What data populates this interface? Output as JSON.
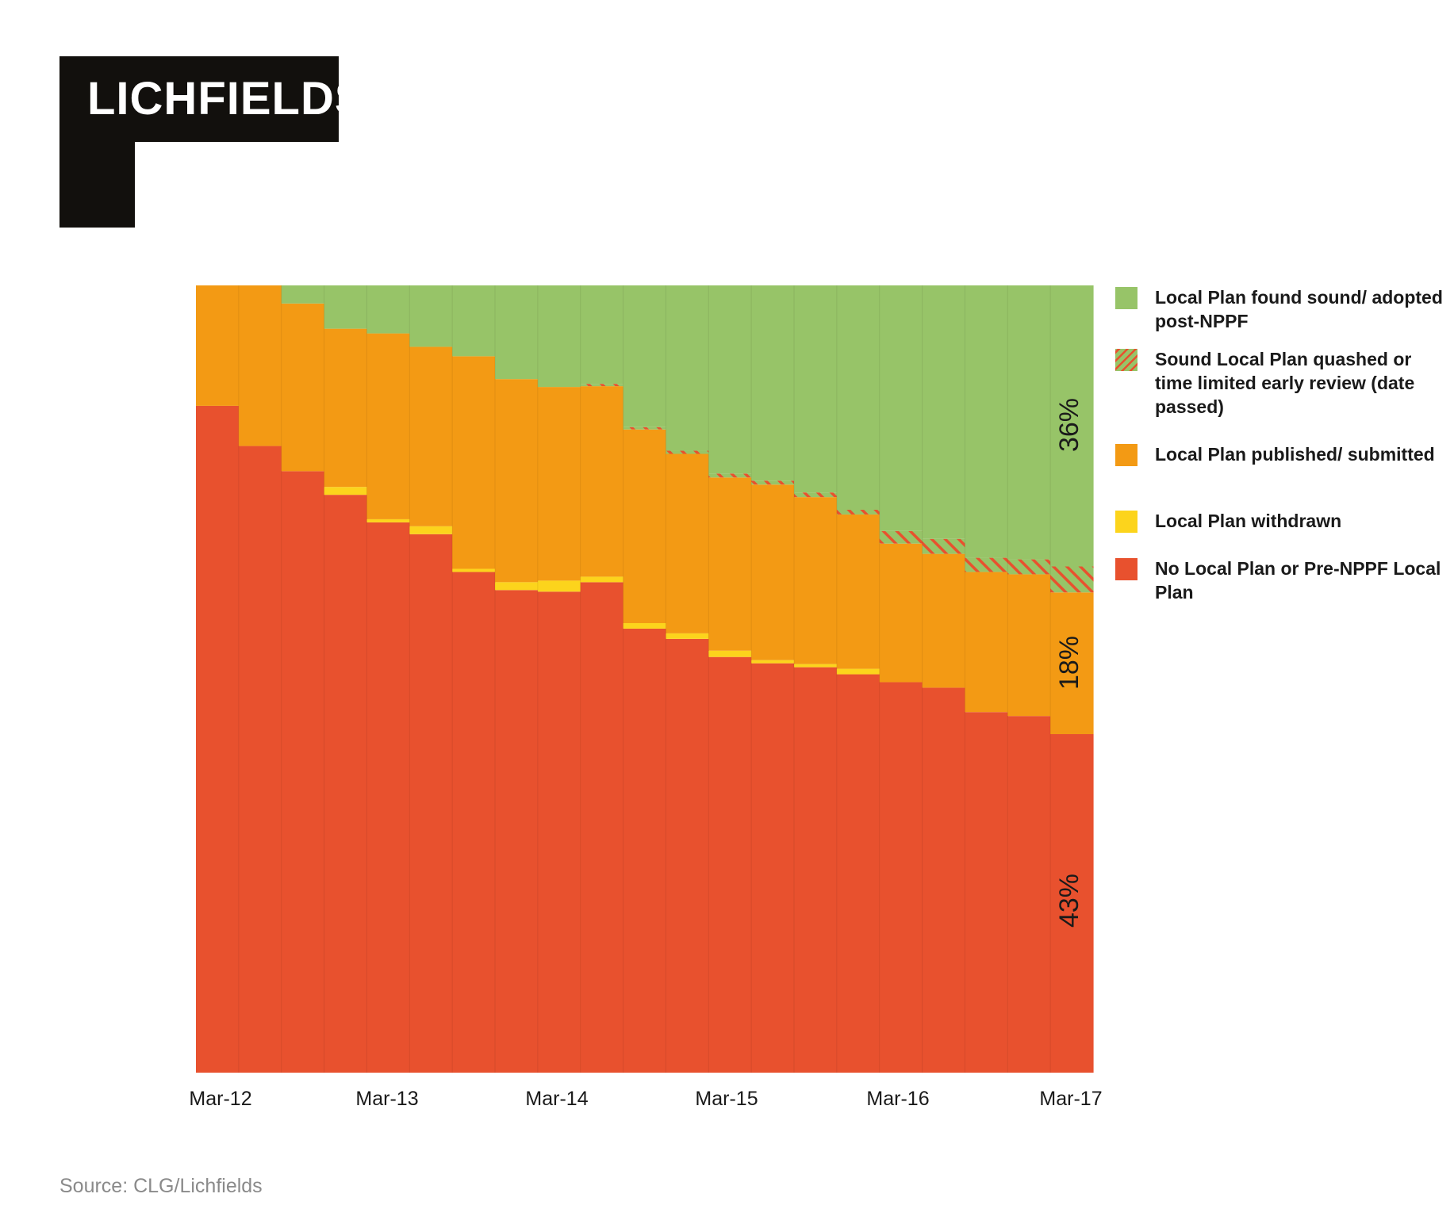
{
  "brand": {
    "logo_text": "LICHFIELDS",
    "logo_color": "#12100d"
  },
  "source": "Source: CLG/Lichfields",
  "chart_data": {
    "type": "stacked-area-step",
    "title": "",
    "xlabel": "",
    "ylabel": "",
    "ylim": [
      0,
      100
    ],
    "x_tick_labels": [
      "Mar-12",
      "Mar-13",
      "Mar-14",
      "Mar-15",
      "Mar-16",
      "Mar-17"
    ],
    "periods": 21,
    "series": [
      {
        "name": "No Local Plan or Pre-NPPF Local Plan",
        "color": "#e8512e",
        "values": [
          84.7,
          79.6,
          76.4,
          73.4,
          69.9,
          68.4,
          63.6,
          61.3,
          61.1,
          62.3,
          56.4,
          55.1,
          52.8,
          52.0,
          51.5,
          50.6,
          49.6,
          48.9,
          45.8,
          45.3,
          43.0
        ]
      },
      {
        "name": "Local Plan withdrawn",
        "color": "#fcd41c",
        "values": [
          0,
          0,
          0,
          1.0,
          0.4,
          1.0,
          0.4,
          1.0,
          1.4,
          0.7,
          0.7,
          0.7,
          0.8,
          0.4,
          0.4,
          0.7,
          0,
          0,
          0,
          0,
          0
        ]
      },
      {
        "name": "Local Plan published/ submitted",
        "color": "#f39a14",
        "values": [
          15.3,
          20.4,
          21.3,
          20.1,
          23.6,
          22.8,
          27.0,
          25.8,
          24.6,
          24.2,
          24.6,
          22.8,
          22.0,
          22.3,
          21.2,
          19.6,
          17.6,
          17.0,
          17.8,
          18.0,
          18.0
        ]
      },
      {
        "name": "Sound Local Plan quashed or time limited early review (date passed)",
        "color": "#e8512e",
        "values": [
          0,
          0,
          0,
          0,
          0,
          0,
          0,
          0,
          0,
          0.3,
          0.3,
          0.4,
          0.5,
          0.5,
          0.6,
          0.6,
          1.6,
          1.9,
          1.8,
          1.9,
          3.3
        ]
      },
      {
        "name": "Local Plan found sound/ adopted post-NPPF",
        "color": "#97c468",
        "values": [
          0,
          0,
          2.3,
          5.5,
          6.1,
          7.8,
          9.0,
          11.9,
          12.9,
          12.5,
          18.0,
          21.0,
          23.9,
          24.8,
          26.3,
          28.5,
          31.2,
          32.2,
          34.6,
          34.8,
          35.7
        ]
      }
    ],
    "annotations": [
      "36%",
      "18%",
      "43%"
    ],
    "legend_position": "right"
  }
}
